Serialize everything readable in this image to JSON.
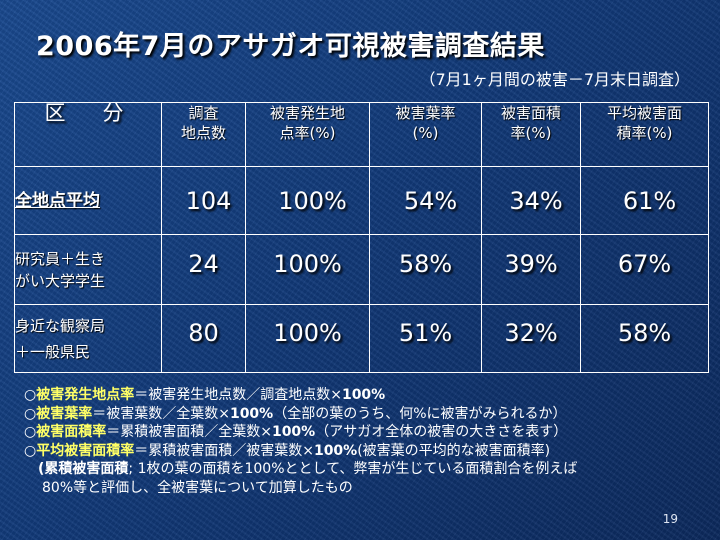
{
  "title": "2006年7月のアサガオ可視被害調査結果",
  "subtitle": "（7月1ヶ月間の被害－7月末日調査）",
  "table": {
    "headers": [
      "区　分",
      "調査\n地点数",
      "被害発生地\n点率(%)",
      "被害葉率\n(%)",
      "被害面積\n率(%)",
      "平均被害面\n積率(%)"
    ],
    "rows": [
      {
        "label": "全地点平均",
        "values": [
          "104",
          "100%",
          "54%",
          "34%",
          "61%"
        ]
      },
      {
        "label": "研究員＋生き\nがい大学学生",
        "values": [
          "24",
          "100%",
          "58%",
          "39%",
          "67%"
        ]
      },
      {
        "label": "身近な観察局\n＋一般県民",
        "values": [
          "80",
          "100%",
          "51%",
          "32%",
          "58%"
        ]
      }
    ]
  },
  "notes": [
    {
      "mark": "○",
      "term": "被害発生地点率",
      "formula": "＝被害発生地点数／調査地点数×",
      "pct": "100%",
      "tail": ""
    },
    {
      "mark": "○",
      "term": "被害葉率",
      "formula": "＝被害葉数／全葉数×",
      "pct": "100%",
      "tail": "（全部の葉のうち、何%に被害がみられるか）"
    },
    {
      "mark": "○",
      "term": "被害面積率",
      "formula": "＝累積被害面積／全葉数×",
      "pct": "100%",
      "tail": "（アサガオ全体の被害の大きさを表す）"
    },
    {
      "mark": "○",
      "term": "平均被害面積率",
      "formula": "＝累積被害面積／被害葉数×",
      "pct": "100%",
      "tail": "(被害葉の平均的な被害面積率)"
    }
  ],
  "note_cumulative": {
    "term": "(累積被害面積",
    "text1": "; 1枚の葉の面積を100%ととして、弊害が生じている面積割合を例えば",
    "text2": "80%等と評価し、全被害葉について加算したもの"
  },
  "page_number": "19",
  "colors": {
    "background": "#123a7a",
    "accent": "#ffff66",
    "text": "#ffffff"
  }
}
